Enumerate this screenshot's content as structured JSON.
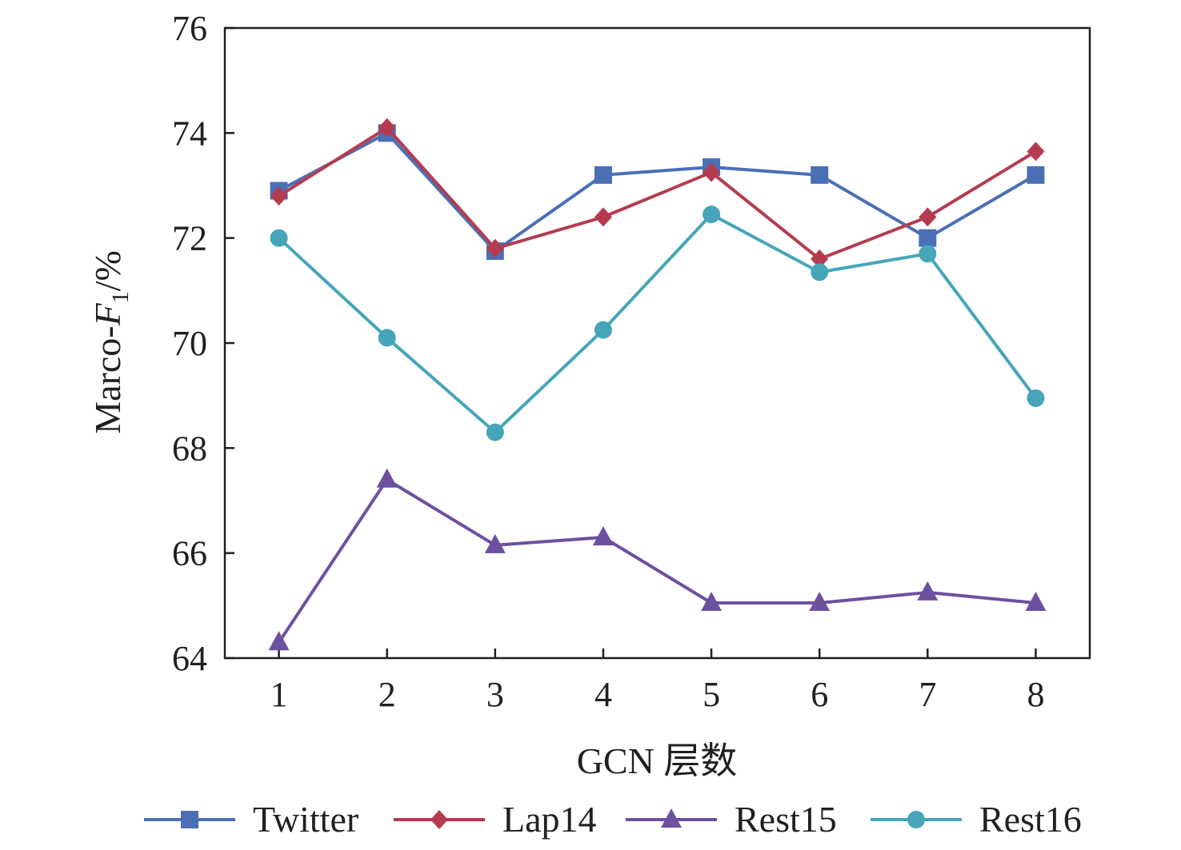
{
  "chart_data": {
    "type": "line",
    "title": "",
    "xlabel": "GCN 层数",
    "ylabel": {
      "prefix": "Marco-",
      "italic": "F",
      "subscript": "1",
      "suffix": "/%"
    },
    "categories": [
      "1",
      "2",
      "3",
      "4",
      "5",
      "6",
      "7",
      "8"
    ],
    "xlim": [
      0.5,
      8.5
    ],
    "ylim": [
      64,
      76
    ],
    "yticks": [
      "64",
      "66",
      "68",
      "70",
      "72",
      "74",
      "76"
    ],
    "grid": false,
    "legend_position": "bottom",
    "series": [
      {
        "name": "Twitter",
        "color": "#4a6fb5",
        "marker": "square",
        "values": [
          72.9,
          74.0,
          71.75,
          73.2,
          73.35,
          73.2,
          72.0,
          73.2
        ]
      },
      {
        "name": "Lap14",
        "color": "#b43c50",
        "marker": "diamond",
        "values": [
          72.8,
          74.1,
          71.8,
          72.4,
          73.25,
          71.6,
          72.4,
          73.65
        ]
      },
      {
        "name": "Rest15",
        "color": "#6e50a0",
        "marker": "triangle",
        "values": [
          64.3,
          67.4,
          66.15,
          66.3,
          65.05,
          65.05,
          65.25,
          65.05
        ]
      },
      {
        "name": "Rest16",
        "color": "#46a5b9",
        "marker": "circle",
        "values": [
          72.0,
          70.1,
          68.3,
          70.25,
          72.45,
          71.35,
          71.7,
          68.95
        ]
      }
    ]
  }
}
